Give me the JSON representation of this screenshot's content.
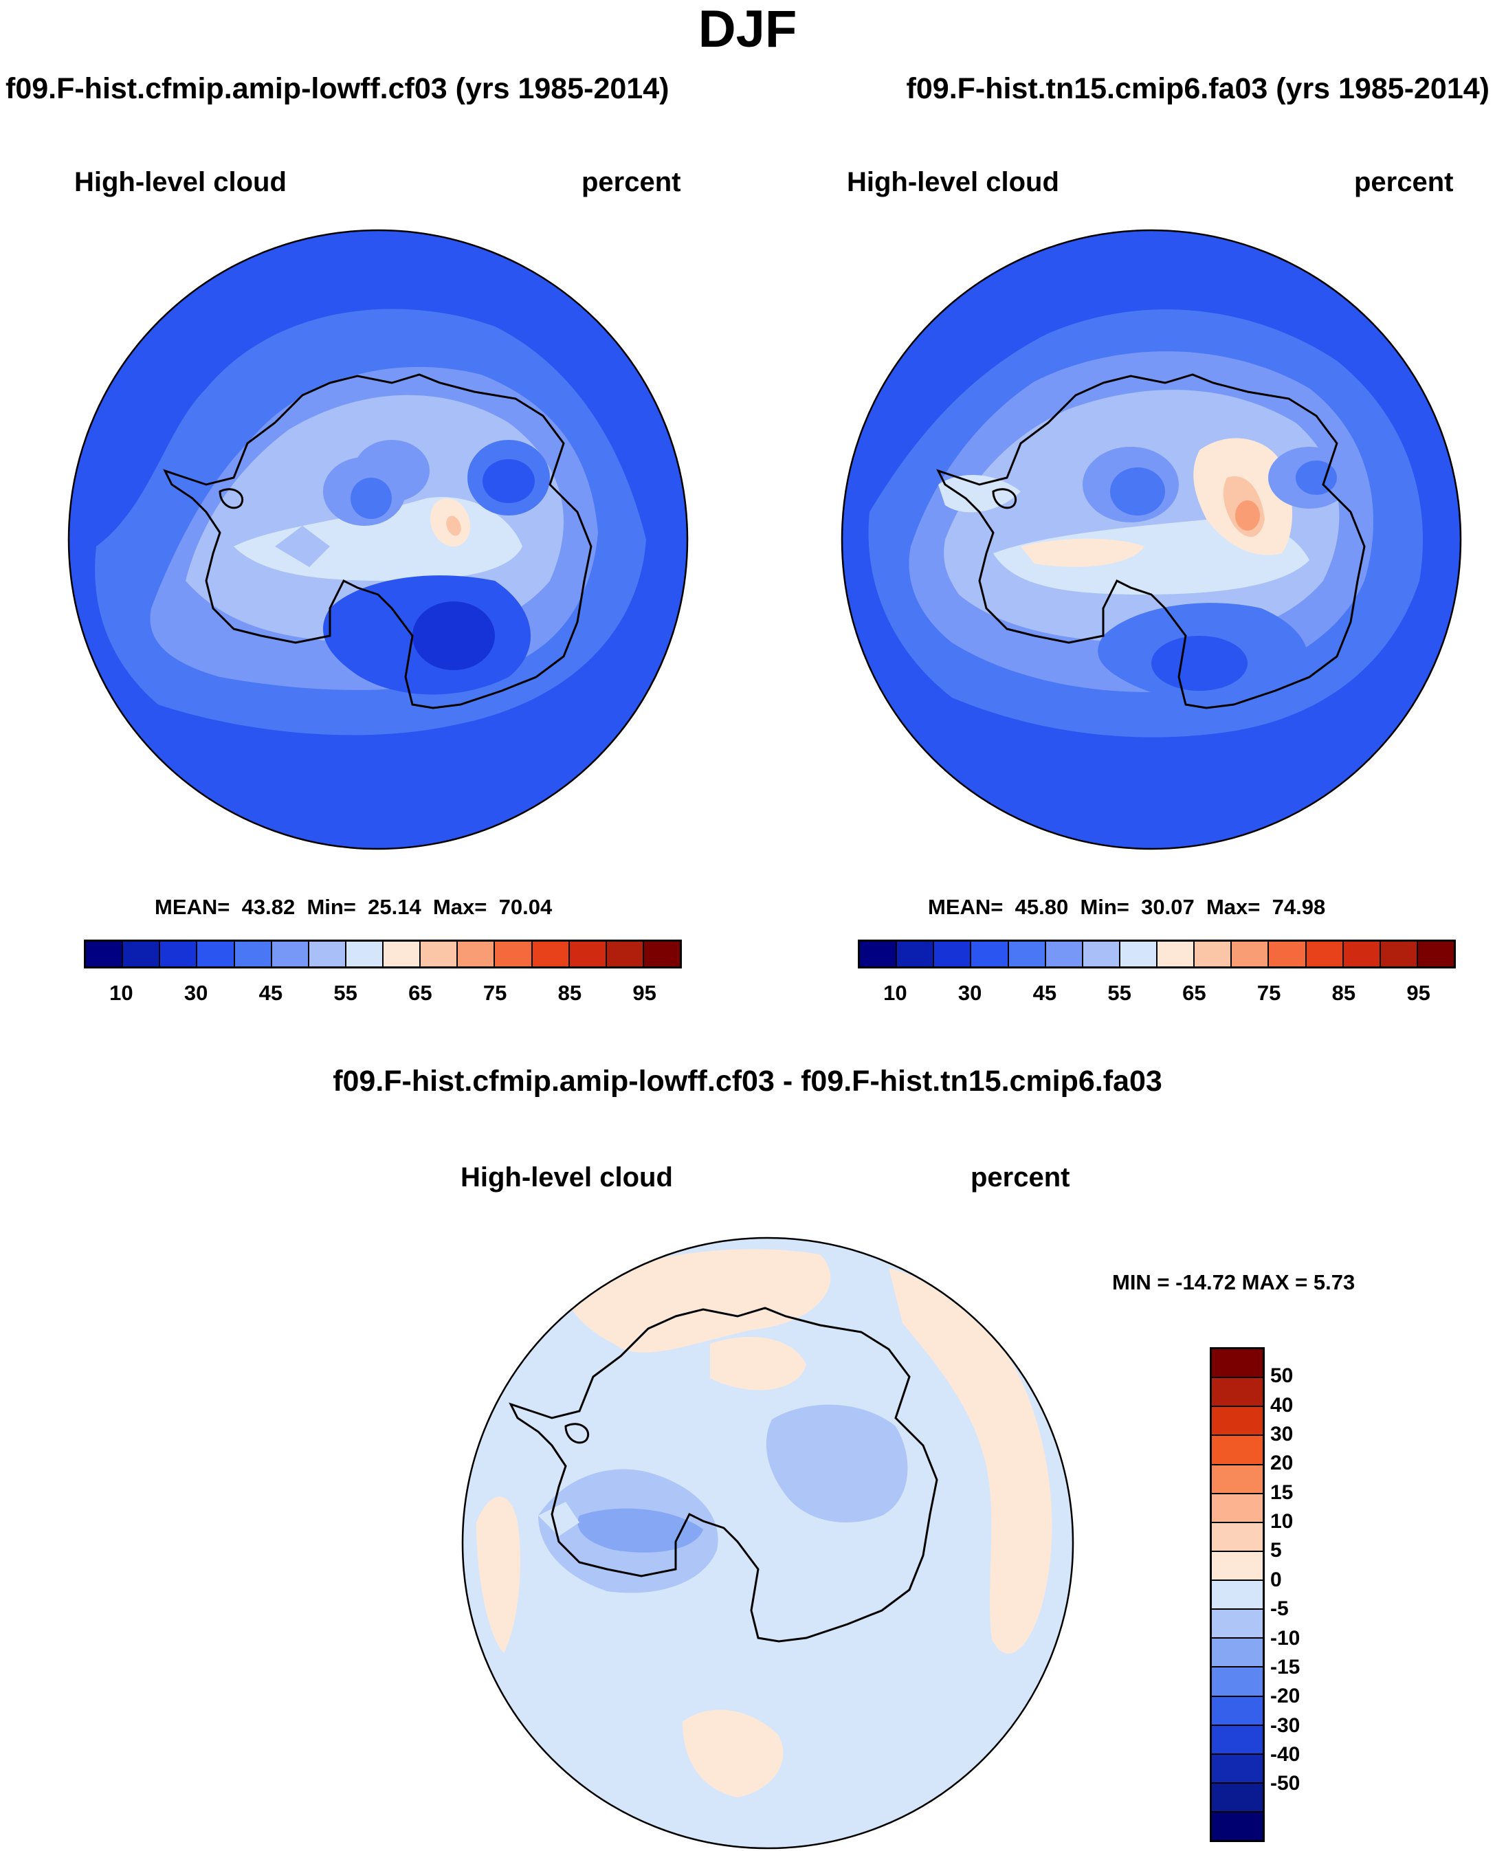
{
  "title": "DJF",
  "panels": [
    {
      "run": "f09.F-hist.cfmip.amip-lowff.cf03 (yrs 1985-2014)",
      "variable": "High-level cloud",
      "units": "percent",
      "mean_label": "MEAN=",
      "mean": "43.82",
      "min_label": "Min=",
      "min": "25.14",
      "max_label": "Max=",
      "max": "70.04"
    },
    {
      "run": "f09.F-hist.tn15.cmip6.fa03 (yrs 1985-2014)",
      "variable": "High-level cloud",
      "units": "percent",
      "mean_label": "MEAN=",
      "mean": "45.80",
      "min_label": "Min=",
      "min": "30.07",
      "max_label": "Max=",
      "max": "74.98"
    }
  ],
  "colorbar": {
    "colors": [
      "#000080",
      "#0a1fb0",
      "#1533d6",
      "#2a55f0",
      "#4a78f5",
      "#7898f7",
      "#a9bff8",
      "#d6e6fa",
      "#fde8d8",
      "#fbc6a8",
      "#f99d75",
      "#f56a3c",
      "#e8421a",
      "#d02a10",
      "#b01e0c",
      "#7a0000"
    ],
    "ticks": [
      "10",
      "30",
      "45",
      "55",
      "65",
      "75",
      "85",
      "95"
    ]
  },
  "difference": {
    "title": "f09.F-hist.cfmip.amip-lowff.cf03 - f09.F-hist.tn15.cmip6.fa03",
    "variable": "High-level cloud",
    "units": "percent",
    "minmax": "MIN = -14.72 MAX =   5.73",
    "colorbar": {
      "colors": [
        "#7a0000",
        "#b01e0c",
        "#d8340e",
        "#f25a25",
        "#f88a5a",
        "#fbb48f",
        "#fcd3b9",
        "#fde8d8",
        "#d6e6fa",
        "#aec6f7",
        "#86a7f4",
        "#5c86f1",
        "#3460eb",
        "#1f42d8",
        "#1128b0",
        "#0a1a90",
        "#000070"
      ],
      "ticks": [
        "50",
        "40",
        "30",
        "20",
        "15",
        "10",
        "5",
        "0",
        "-5",
        "-10",
        "-15",
        "-20",
        "-30",
        "-40",
        "-50"
      ]
    }
  }
}
